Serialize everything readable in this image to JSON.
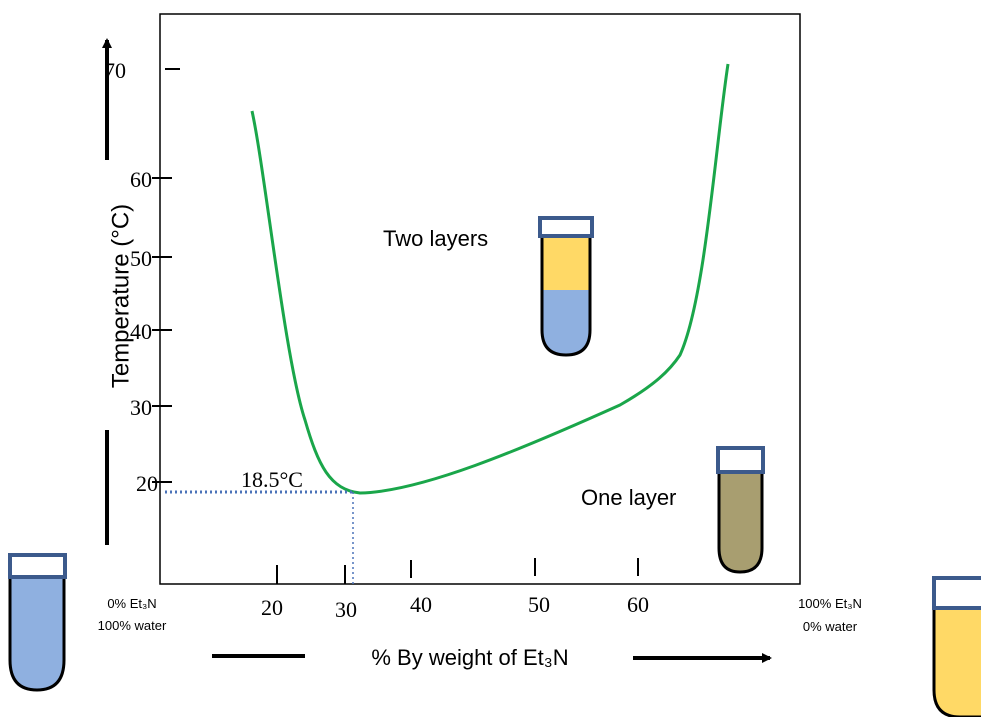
{
  "axes": {
    "y_label": "Temperature (°C)",
    "x_label": "% By weight of Et₃N",
    "y_ticks": [
      "70",
      "60",
      "50",
      "40",
      "30",
      "20"
    ],
    "x_ticks": [
      "20",
      "30",
      "40",
      "50",
      "60"
    ]
  },
  "annotations": {
    "critical_temp": "18.5°C",
    "two_layers": "Two layers",
    "one_layer": "One layer"
  },
  "left_end": [
    "0% Et₃N",
    "100% water"
  ],
  "right_end": [
    "100% Et₃N",
    "0% water"
  ]
}
